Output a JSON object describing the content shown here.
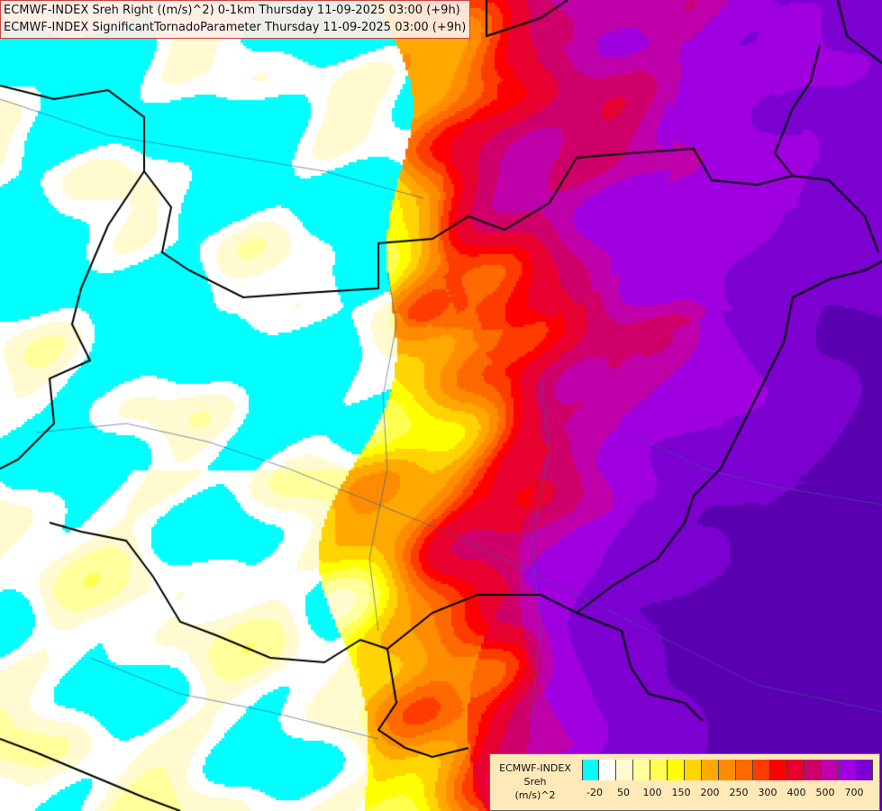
{
  "header": {
    "line1": "ECMWF-INDEX Sreh Right ((m/s)^2) 0-1km Thursday 11-09-2025 03:00 (+9h)",
    "line2": "ECMWF-INDEX SignificantTornadoParameter Thursday 11-09-2025 03:00 (+9h)"
  },
  "legend": {
    "title": "ECMWF-INDEX",
    "variable": "Sreh",
    "unit": "(m/s)^2",
    "ticks": [
      "-20",
      "50",
      "100",
      "150",
      "200",
      "250",
      "300",
      "400",
      "500",
      "700"
    ],
    "colors": [
      "#00ffff",
      "#ffffff",
      "#fffad0",
      "#ffff9c",
      "#ffff50",
      "#ffff00",
      "#ffd400",
      "#ffa800",
      "#ff8c00",
      "#ff6a00",
      "#ff3c00",
      "#ff0000",
      "#e8002e",
      "#d0006a",
      "#c000a8",
      "#a000e0",
      "#7c00d0",
      "#5a00b0",
      "#3c0090",
      "#1a0070"
    ]
  },
  "map": {
    "region": "Central Europe",
    "field": "Storm-relative helicity 0-1km"
  }
}
